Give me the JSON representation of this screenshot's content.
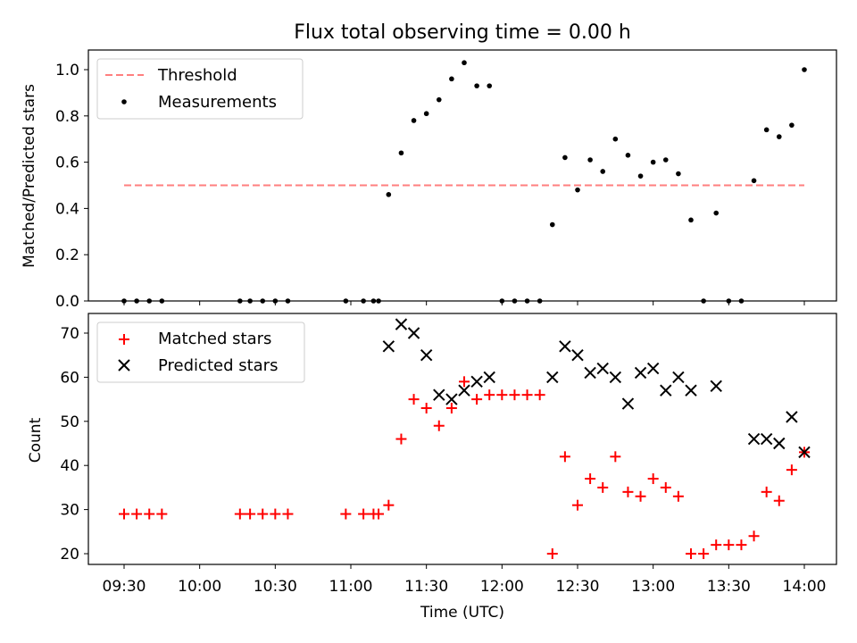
{
  "chart_data": [
    {
      "type": "scatter",
      "title": "Flux total observing time = 0.00 h",
      "xlabel": "",
      "ylabel": "Matched/Predicted stars",
      "ylim": [
        0,
        1.08
      ],
      "yticks": [
        0.0,
        0.2,
        0.4,
        0.6,
        0.8,
        1.0
      ],
      "ytick_labels": [
        "0.0",
        "0.2",
        "0.4",
        "0.6",
        "0.8",
        "1.0"
      ],
      "legend_position": "top-left",
      "legend": [
        "Threshold",
        "Measurements"
      ],
      "colors": {
        "threshold": "#ff7f7f",
        "measurements": "#000000"
      },
      "threshold": {
        "name": "Threshold",
        "y": 0.5,
        "x_range": [
          "09:30",
          "14:00"
        ]
      },
      "series": [
        {
          "name": "Measurements",
          "x": [
            "09:30",
            "09:35",
            "09:40",
            "09:45",
            "10:16",
            "10:20",
            "10:25",
            "10:30",
            "10:35",
            "10:58",
            "11:05",
            "11:09",
            "11:11",
            "11:15",
            "11:20",
            "11:25",
            "11:30",
            "11:35",
            "11:40",
            "11:45",
            "11:50",
            "11:55",
            "12:00",
            "12:05",
            "12:10",
            "12:15",
            "12:20",
            "12:25",
            "12:30",
            "12:35",
            "12:40",
            "12:45",
            "12:50",
            "12:55",
            "13:00",
            "13:05",
            "13:10",
            "13:15",
            "13:20",
            "13:25",
            "13:30",
            "13:35",
            "13:40",
            "13:45",
            "13:50",
            "13:55",
            "14:00"
          ],
          "y": [
            0.0,
            0.0,
            0.0,
            0.0,
            0.0,
            0.0,
            0.0,
            0.0,
            0.0,
            0.0,
            0.0,
            0.0,
            0.0,
            0.46,
            0.64,
            0.78,
            0.81,
            0.87,
            0.96,
            1.03,
            0.93,
            0.93,
            0.0,
            0.0,
            0.0,
            0.0,
            0.33,
            0.62,
            0.48,
            0.61,
            0.56,
            0.7,
            0.63,
            0.54,
            0.6,
            0.61,
            0.55,
            0.35,
            0.0,
            0.38,
            0.0,
            0.0,
            0.52,
            0.74,
            0.71,
            0.76,
            1.0
          ]
        }
      ]
    },
    {
      "type": "scatter",
      "title": "",
      "xlabel": "Time (UTC)",
      "ylabel": "Count",
      "ylim": [
        17.5,
        74.5
      ],
      "yticks": [
        20,
        30,
        40,
        50,
        60,
        70
      ],
      "ytick_labels": [
        "20",
        "30",
        "40",
        "50",
        "60",
        "70"
      ],
      "xticks": [
        "09:30",
        "10:00",
        "10:30",
        "11:00",
        "11:30",
        "12:00",
        "12:30",
        "13:00",
        "13:30",
        "14:00"
      ],
      "xlim": [
        "09:17",
        "14:12"
      ],
      "legend_position": "top-left",
      "legend": [
        "Matched stars",
        "Predicted stars"
      ],
      "colors": {
        "matched": "#ff0000",
        "predicted": "#000000"
      },
      "series": [
        {
          "name": "Matched stars",
          "marker": "+",
          "x": [
            "09:30",
            "09:35",
            "09:40",
            "09:45",
            "10:16",
            "10:20",
            "10:25",
            "10:30",
            "10:35",
            "10:58",
            "11:05",
            "11:09",
            "11:11",
            "11:15",
            "11:20",
            "11:25",
            "11:30",
            "11:35",
            "11:40",
            "11:45",
            "11:50",
            "11:55",
            "12:00",
            "12:05",
            "12:10",
            "12:15",
            "12:20",
            "12:25",
            "12:30",
            "12:35",
            "12:40",
            "12:45",
            "12:50",
            "12:55",
            "13:00",
            "13:05",
            "13:10",
            "13:15",
            "13:20",
            "13:25",
            "13:30",
            "13:35",
            "13:40",
            "13:45",
            "13:50",
            "13:55",
            "14:00"
          ],
          "y": [
            29,
            29,
            29,
            29,
            29,
            29,
            29,
            29,
            29,
            29,
            29,
            29,
            29,
            31,
            46,
            55,
            53,
            49,
            53,
            59,
            55,
            56,
            56,
            56,
            56,
            56,
            20,
            42,
            31,
            37,
            35,
            42,
            34,
            33,
            37,
            35,
            33,
            20,
            20,
            22,
            22,
            22,
            24,
            34,
            32,
            39,
            43
          ]
        },
        {
          "name": "Predicted stars",
          "marker": "x",
          "x": [
            "11:15",
            "11:20",
            "11:25",
            "11:30",
            "11:35",
            "11:40",
            "11:45",
            "11:50",
            "11:55",
            "12:20",
            "12:25",
            "12:30",
            "12:35",
            "12:40",
            "12:45",
            "12:50",
            "12:55",
            "13:00",
            "13:05",
            "13:10",
            "13:15",
            "13:25",
            "13:40",
            "13:45",
            "13:50",
            "13:55",
            "14:00"
          ],
          "y": [
            67,
            72,
            70,
            65,
            56,
            55,
            57,
            59,
            60,
            60,
            67,
            65,
            61,
            62,
            60,
            54,
            61,
            62,
            57,
            60,
            57,
            58,
            46,
            46,
            45,
            51,
            43
          ]
        }
      ]
    }
  ]
}
